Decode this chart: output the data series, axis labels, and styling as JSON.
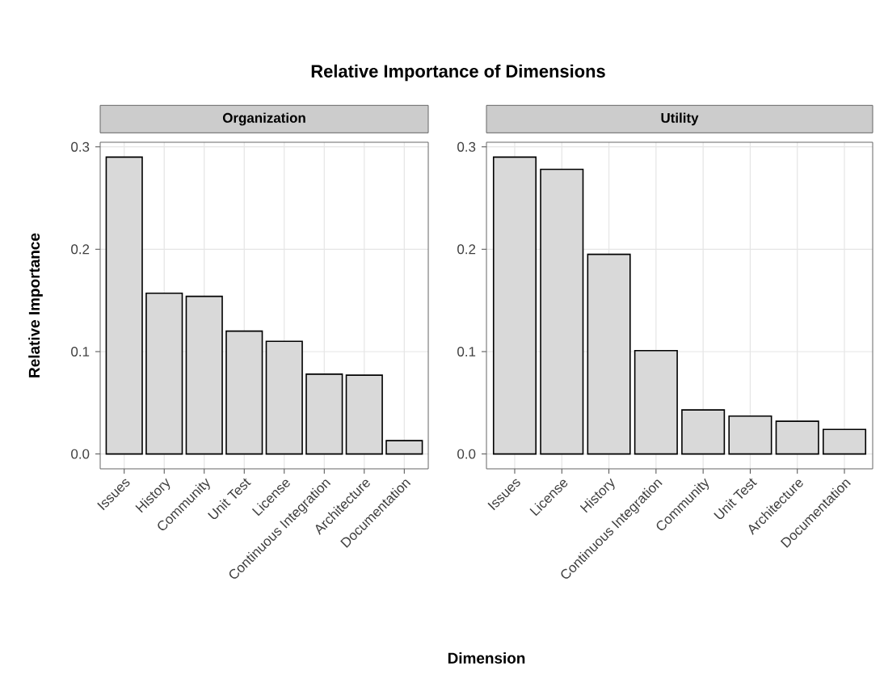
{
  "chart_data": [
    {
      "type": "bar",
      "title": "Relative Importance of Dimensions",
      "subtitle": "Organization",
      "xlabel": "Dimension",
      "ylabel": "Relative Importance",
      "categories": [
        "Issues",
        "History",
        "Community",
        "Unit Test",
        "License",
        "Continuous Integration",
        "Architecture",
        "Documentation"
      ],
      "values": [
        0.29,
        0.157,
        0.154,
        0.12,
        0.11,
        0.078,
        0.077,
        0.013
      ],
      "color": "#d9d9d9",
      "ylim": [
        -0.0145,
        0.3045
      ],
      "yticks": [
        {
          "value": 0,
          "label": "0.0"
        },
        0.1,
        0.2,
        0.3
      ],
      "grid": true
    },
    {
      "type": "bar",
      "subtitle": "Utility",
      "categories": [
        "Issues",
        "License",
        "History",
        "Continuous Integration",
        "Community",
        "Unit Test",
        "Architecture",
        "Documentation"
      ],
      "values": [
        0.29,
        0.278,
        0.195,
        0.101,
        0.043,
        0.037,
        0.032,
        0.024
      ],
      "color": "#d9d9d9",
      "ylim": [
        -0.0145,
        0.3045
      ],
      "yticks": [
        {
          "value": 0,
          "label": "0.0"
        },
        0.1,
        0.2,
        0.3
      ],
      "grid": true
    }
  ]
}
